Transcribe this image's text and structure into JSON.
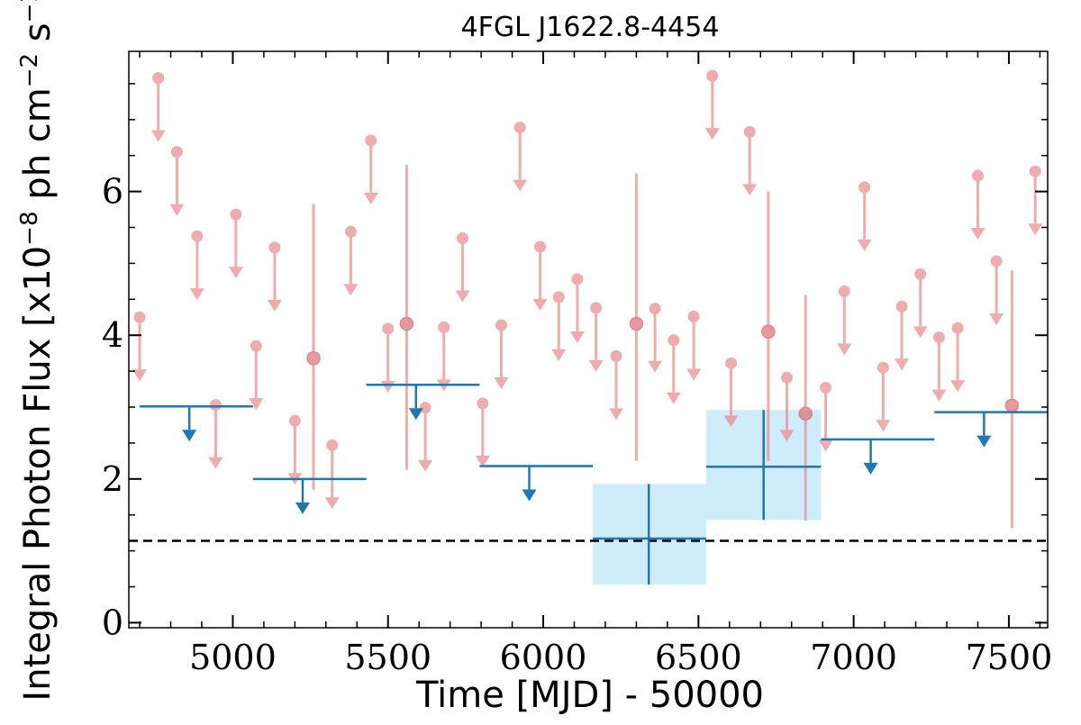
{
  "chart_data": {
    "type": "scatter",
    "title": "4FGL J1622.8-4454",
    "xlabel": "Time [MJD] - 50000",
    "ylabel": "Integral Photon Flux [x10^-8 ph cm^-2 s^-1]",
    "ylabel_parts": {
      "main": "Integral Photon Flux [x10",
      "exp1": "−8",
      "mid": " ph cm",
      "exp2": "−2",
      "mid2": " s",
      "exp3": "−1",
      "end": "]"
    },
    "xlim": [
      4665,
      7625
    ],
    "ylim": [
      -0.07,
      7.95
    ],
    "xticks": [
      5000,
      5500,
      6000,
      6500,
      7000,
      7500
    ],
    "yticks": [
      0,
      2,
      4,
      6
    ],
    "x_minor_step": 100,
    "y_minor_step": 0.5,
    "grid": false,
    "colors": {
      "short_bin": "#e8898c",
      "long_bin": "#1f77b4",
      "long_bin_band": "#cfecfb",
      "mean_line": "#000000"
    },
    "mean_flux": 1.14,
    "short_bin_upper_limits": [
      {
        "x": 4700,
        "y": 4.25
      },
      {
        "x": 4760,
        "y": 7.58
      },
      {
        "x": 4820,
        "y": 6.55
      },
      {
        "x": 4885,
        "y": 5.38
      },
      {
        "x": 4945,
        "y": 3.03
      },
      {
        "x": 5010,
        "y": 5.68
      },
      {
        "x": 5075,
        "y": 3.85
      },
      {
        "x": 5135,
        "y": 5.22
      },
      {
        "x": 5200,
        "y": 2.81
      },
      {
        "x": 5320,
        "y": 2.47
      },
      {
        "x": 5380,
        "y": 5.44
      },
      {
        "x": 5445,
        "y": 6.71
      },
      {
        "x": 5500,
        "y": 4.09
      },
      {
        "x": 5620,
        "y": 2.99
      },
      {
        "x": 5680,
        "y": 4.11
      },
      {
        "x": 5740,
        "y": 5.35
      },
      {
        "x": 5805,
        "y": 3.05
      },
      {
        "x": 5865,
        "y": 4.14
      },
      {
        "x": 5925,
        "y": 6.89
      },
      {
        "x": 5990,
        "y": 5.23
      },
      {
        "x": 6050,
        "y": 4.53
      },
      {
        "x": 6110,
        "y": 4.78
      },
      {
        "x": 6170,
        "y": 4.38
      },
      {
        "x": 6235,
        "y": 3.71
      },
      {
        "x": 6360,
        "y": 4.37
      },
      {
        "x": 6420,
        "y": 3.93
      },
      {
        "x": 6485,
        "y": 4.26
      },
      {
        "x": 6545,
        "y": 7.61
      },
      {
        "x": 6605,
        "y": 3.61
      },
      {
        "x": 6665,
        "y": 6.83
      },
      {
        "x": 6785,
        "y": 3.41
      },
      {
        "x": 6910,
        "y": 3.27
      },
      {
        "x": 6970,
        "y": 4.61
      },
      {
        "x": 7035,
        "y": 6.06
      },
      {
        "x": 7095,
        "y": 3.55
      },
      {
        "x": 7155,
        "y": 4.4
      },
      {
        "x": 7215,
        "y": 4.85
      },
      {
        "x": 7275,
        "y": 3.97
      },
      {
        "x": 7335,
        "y": 4.1
      },
      {
        "x": 7400,
        "y": 6.22
      },
      {
        "x": 7460,
        "y": 5.03
      },
      {
        "x": 7585,
        "y": 6.28
      }
    ],
    "short_bin_detections": [
      {
        "x": 5260,
        "y": 3.68,
        "ylo": 1.85,
        "yhi": 5.82
      },
      {
        "x": 5560,
        "y": 4.16,
        "ylo": 2.13,
        "yhi": 6.37
      },
      {
        "x": 6300,
        "y": 4.16,
        "ylo": 2.25,
        "yhi": 6.25
      },
      {
        "x": 6725,
        "y": 4.05,
        "ylo": 2.25,
        "yhi": 6.0
      },
      {
        "x": 6845,
        "y": 2.91,
        "ylo": 1.42,
        "yhi": 4.56
      },
      {
        "x": 7510,
        "y": 3.02,
        "ylo": 1.32,
        "yhi": 4.9
      }
    ],
    "long_bin_upper_limits": [
      {
        "x0": 4700,
        "x1": 5065,
        "y": 3.01,
        "xmark": 4860
      },
      {
        "x0": 5065,
        "x1": 5430,
        "y": 2.0,
        "xmark": 5225
      },
      {
        "x0": 5430,
        "x1": 5795,
        "y": 3.31,
        "xmark": 5590
      },
      {
        "x0": 5795,
        "x1": 6160,
        "y": 2.18,
        "xmark": 5955
      },
      {
        "x0": 6895,
        "x1": 7260,
        "y": 2.55,
        "xmark": 7055
      },
      {
        "x0": 7260,
        "x1": 7625,
        "y": 2.93,
        "xmark": 7420
      }
    ],
    "long_bin_detections": [
      {
        "x0": 6160,
        "x1": 6525,
        "x": 6340,
        "y": 1.17,
        "ylo": 0.53,
        "yhi": 1.93
      },
      {
        "x0": 6525,
        "x1": 6895,
        "x": 6710,
        "y": 2.17,
        "ylo": 1.43,
        "yhi": 2.96
      }
    ]
  }
}
